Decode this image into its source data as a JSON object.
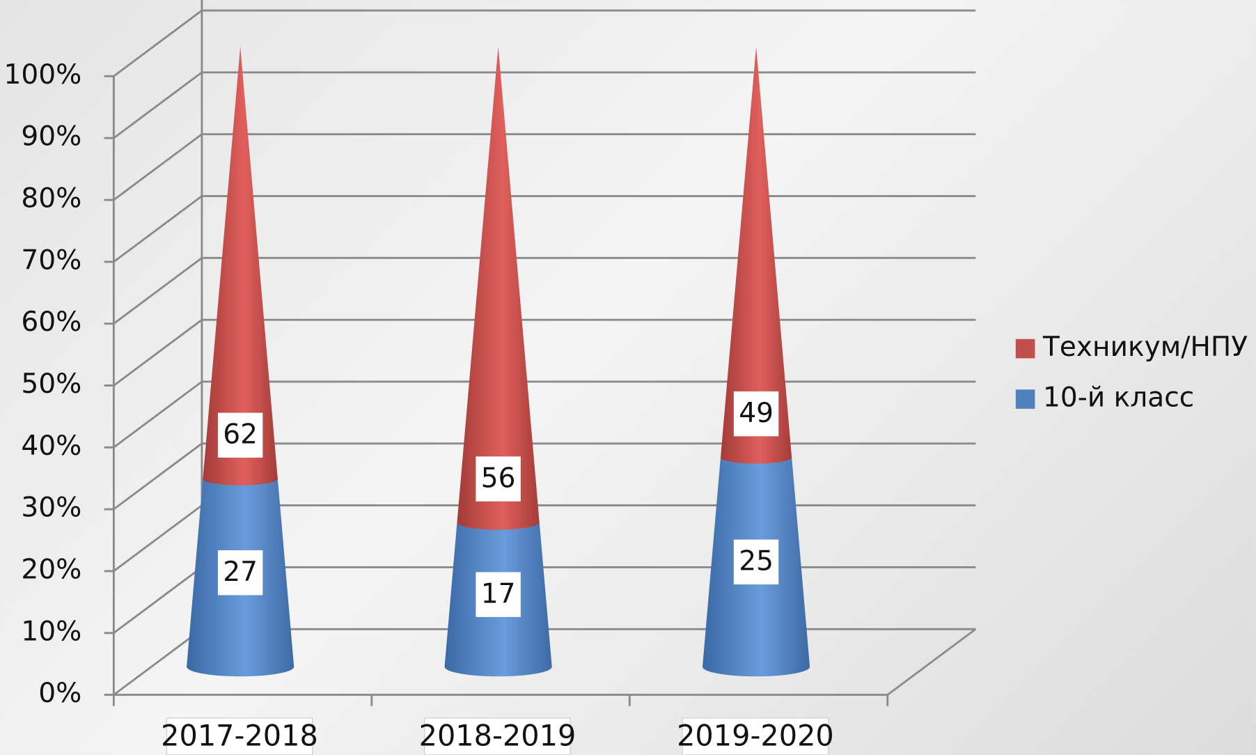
{
  "chart_data": {
    "type": "stacked_percent_cone",
    "categories": [
      "2017-2018",
      "2018-2019",
      "2019-2020"
    ],
    "series": [
      {
        "name": "10-й класс",
        "color": "#4f81bd",
        "values": [
          27,
          17,
          25
        ]
      },
      {
        "name": "Техникум/НПУ",
        "color": "#c0504d",
        "values": [
          62,
          56,
          49
        ]
      }
    ],
    "ylim": [
      0,
      100
    ],
    "yticks": [
      {
        "value": 0,
        "label": "0%"
      },
      {
        "value": 10,
        "label": "10%"
      },
      {
        "value": 20,
        "label": "20%"
      },
      {
        "value": 30,
        "label": "30%"
      },
      {
        "value": 40,
        "label": "40%"
      },
      {
        "value": 50,
        "label": "50%"
      },
      {
        "value": 60,
        "label": "60%"
      },
      {
        "value": 70,
        "label": "70%"
      },
      {
        "value": 80,
        "label": "80%"
      },
      {
        "value": 90,
        "label": "90%"
      },
      {
        "value": 100,
        "label": "100%"
      }
    ],
    "grid": true,
    "legend": "right"
  }
}
